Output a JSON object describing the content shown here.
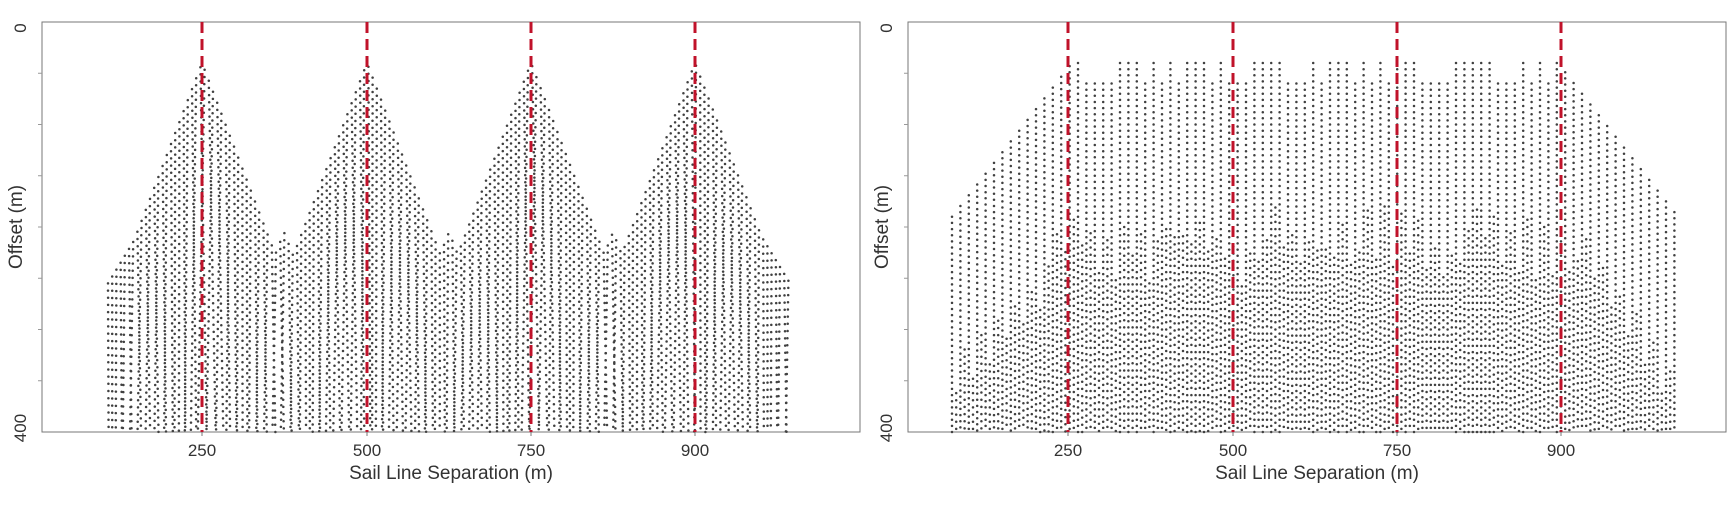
{
  "chart_data": [
    {
      "type": "scatter",
      "title": "",
      "xlabel": "Sail Line Separation (m)",
      "ylabel": "Offset (m)",
      "x_ticks": [
        "250",
        "500",
        "750",
        "900"
      ],
      "y_ticks": [
        "0",
        "400"
      ],
      "xlim": [
        50,
        1050
      ],
      "ylim": [
        0,
        400
      ],
      "reference_lines": [
        250,
        500,
        750,
        900
      ],
      "reference_color": "#c0122a",
      "point_color": "#404040",
      "pattern": "peaked",
      "peak_offset_min": 40,
      "valley_offset_min": 210,
      "edge_offset_min": 255
    },
    {
      "type": "scatter",
      "title": "",
      "xlabel": "Sail Line Separation (m)",
      "ylabel": "Offset (m)",
      "x_ticks": [
        "250",
        "500",
        "750",
        "900"
      ],
      "y_ticks": [
        "0",
        "400"
      ],
      "xlim": [
        50,
        1050
      ],
      "ylim": [
        0,
        400
      ],
      "reference_lines": [
        250,
        500,
        750,
        900
      ],
      "reference_color": "#c0122a",
      "point_color": "#404040",
      "pattern": "columnar",
      "peak_offset_min": 40,
      "edge_offset_min": 190
    }
  ]
}
